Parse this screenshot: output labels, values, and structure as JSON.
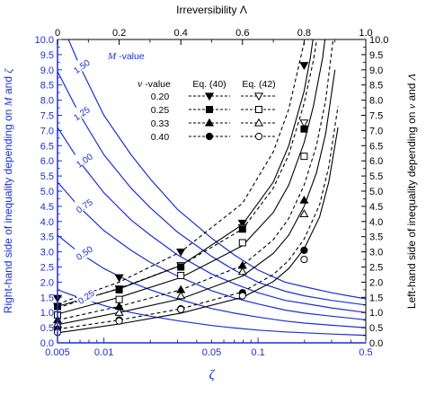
{
  "colors": {
    "blue": "#1a2fd4",
    "black": "#000000"
  },
  "chart_data": {
    "type": "line",
    "x_axis": {
      "title": "ζ",
      "scale": "log",
      "range": [
        0.005,
        0.5
      ],
      "ticks": [
        {
          "value": 0.005,
          "label": "0.005"
        },
        {
          "value": 0.01,
          "label": "0.01"
        },
        {
          "value": 0.05,
          "label": "0.05"
        },
        {
          "value": 0.1,
          "label": "0.1"
        },
        {
          "value": 0.5,
          "label": "0.5"
        }
      ]
    },
    "top_axis": {
      "title": "Irreversibility   Λ",
      "range": [
        0,
        1
      ],
      "ticks": [
        "0",
        "0.2",
        "0.4",
        "0.6",
        "0.8",
        "1.0"
      ]
    },
    "left_axis": {
      "title_parts": [
        "Right-hand side of inequality depending on ",
        "M",
        " and ",
        "ζ"
      ],
      "range": [
        0,
        10
      ],
      "ticks": [
        "0.0",
        "0.5",
        "1.0",
        "1.5",
        "2.0",
        "2.5",
        "3.0",
        "3.5",
        "4.0",
        "4.5",
        "5.0",
        "5.5",
        "6.0",
        "6.5",
        "7.0",
        "7.5",
        "8.0",
        "8.5",
        "9.0",
        "9.5",
        "10.0"
      ]
    },
    "right_axis": {
      "title_parts": [
        "Left-hand side of inequality depending on ",
        "ν",
        " and ",
        "Λ"
      ],
      "range": [
        0,
        10
      ],
      "ticks": [
        "0.0",
        "0.5",
        "1.0",
        "1.5",
        "2.0",
        "2.5",
        "3.0",
        "3.5",
        "4.0",
        "4.5",
        "5.0",
        "5.5",
        "6.0",
        "6.5",
        "7.0",
        "7.5",
        "8.0",
        "8.5",
        "9.0",
        "9.5",
        "10.0"
      ]
    },
    "m_series_title": [
      "M",
      " -value"
    ],
    "m_series": [
      {
        "name": "1.50",
        "x": [
          0.005,
          0.007,
          0.01,
          0.015,
          0.02,
          0.03,
          0.05,
          0.07,
          0.1,
          0.15,
          0.2,
          0.3,
          0.5
        ],
        "y": [
          10.85,
          9.1,
          7.5,
          6.2,
          5.4,
          4.4,
          3.45,
          2.9,
          2.4,
          2.0,
          1.85,
          1.65,
          1.45
        ]
      },
      {
        "name": "1.25",
        "x": [
          0.005,
          0.007,
          0.01,
          0.015,
          0.02,
          0.03,
          0.05,
          0.07,
          0.1,
          0.15,
          0.2,
          0.3,
          0.5
        ],
        "y": [
          8.95,
          7.5,
          6.2,
          5.1,
          4.45,
          3.65,
          2.85,
          2.4,
          2.0,
          1.7,
          1.55,
          1.4,
          1.25
        ]
      },
      {
        "name": "1.00",
        "x": [
          0.005,
          0.007,
          0.01,
          0.015,
          0.02,
          0.03,
          0.05,
          0.07,
          0.1,
          0.15,
          0.2,
          0.3,
          0.5
        ],
        "y": [
          7.1,
          5.95,
          4.95,
          4.05,
          3.55,
          2.9,
          2.27,
          1.95,
          1.65,
          1.4,
          1.3,
          1.15,
          1.0
        ]
      },
      {
        "name": "0.75",
        "x": [
          0.005,
          0.007,
          0.01,
          0.015,
          0.02,
          0.03,
          0.05,
          0.07,
          0.1,
          0.15,
          0.2,
          0.3,
          0.5
        ],
        "y": [
          5.3,
          4.45,
          3.7,
          3.05,
          2.65,
          2.2,
          1.72,
          1.48,
          1.28,
          1.08,
          0.98,
          0.88,
          0.76
        ]
      },
      {
        "name": "0.50",
        "x": [
          0.005,
          0.007,
          0.01,
          0.015,
          0.02,
          0.03,
          0.05,
          0.07,
          0.1,
          0.15,
          0.2,
          0.3,
          0.5
        ],
        "y": [
          3.55,
          2.95,
          2.45,
          2.0,
          1.75,
          1.45,
          1.13,
          0.98,
          0.85,
          0.72,
          0.65,
          0.58,
          0.5
        ]
      },
      {
        "name": "0.25",
        "x": [
          0.005,
          0.007,
          0.01,
          0.015,
          0.02,
          0.03,
          0.05,
          0.07,
          0.1,
          0.15,
          0.2,
          0.3,
          0.5
        ],
        "y": [
          1.75,
          1.48,
          1.23,
          1.0,
          0.88,
          0.73,
          0.57,
          0.49,
          0.42,
          0.36,
          0.33,
          0.29,
          0.25
        ]
      }
    ],
    "nu_title": [
      "ν",
      " -value"
    ],
    "eq40_label": "Eq. (40)",
    "eq42_label": "Eq. (42)",
    "nu_series": [
      {
        "nu": "0.20",
        "marker": "triangle-down",
        "eq40": {
          "x": [
            0,
            0.2,
            0.4,
            0.6,
            0.7,
            0.75,
            0.8,
            0.82,
            0.84,
            0.86
          ],
          "y": [
            1.28,
            2.0,
            3.0,
            4.6,
            6.3,
            7.7,
            9.9,
            11.2,
            12.8,
            15.0
          ]
        },
        "eq42": {
          "x": [
            0,
            0.2,
            0.4,
            0.6,
            0.7,
            0.75,
            0.8,
            0.82,
            0.84,
            0.86
          ],
          "y": [
            1.2,
            1.78,
            2.55,
            3.9,
            5.3,
            6.5,
            8.3,
            9.4,
            10.8,
            12.8
          ]
        },
        "marker_pts": {
          "eq40": [
            [
              0,
              1.47
            ],
            [
              0.2,
              2.15
            ],
            [
              0.4,
              3.0
            ],
            [
              0.6,
              3.95
            ],
            [
              0.8,
              9.15
            ]
          ],
          "eq42": [
            [
              0,
              1.2
            ],
            [
              0.2,
              1.78
            ],
            [
              0.4,
              2.55
            ],
            [
              0.6,
              3.8
            ],
            [
              0.8,
              7.25
            ]
          ]
        }
      },
      {
        "nu": "0.25",
        "marker": "square",
        "eq40": {
          "x": [
            0,
            0.2,
            0.4,
            0.6,
            0.7,
            0.75,
            0.8,
            0.83,
            0.86,
            0.88
          ],
          "y": [
            1.15,
            1.8,
            2.55,
            3.75,
            5.1,
            6.2,
            7.9,
            9.3,
            11.2,
            13.0
          ]
        },
        "eq42": {
          "x": [
            0,
            0.2,
            0.4,
            0.6,
            0.7,
            0.75,
            0.8,
            0.83,
            0.86,
            0.88
          ],
          "y": [
            0.95,
            1.5,
            2.15,
            3.2,
            4.3,
            5.2,
            6.6,
            7.8,
            9.4,
            11.0
          ]
        },
        "marker_pts": {
          "eq40": [
            [
              0,
              1.2
            ],
            [
              0.2,
              1.75
            ],
            [
              0.4,
              2.5
            ],
            [
              0.6,
              3.75
            ],
            [
              0.8,
              7.05
            ]
          ],
          "eq42": [
            [
              0,
              0.92
            ],
            [
              0.2,
              1.43
            ],
            [
              0.4,
              2.22
            ],
            [
              0.6,
              3.3
            ],
            [
              0.8,
              6.15
            ]
          ]
        }
      },
      {
        "nu": "0.33",
        "marker": "triangle-up",
        "eq40": {
          "x": [
            0,
            0.2,
            0.4,
            0.6,
            0.7,
            0.75,
            0.8,
            0.84,
            0.87,
            0.9
          ],
          "y": [
            0.75,
            1.2,
            1.75,
            2.55,
            3.4,
            4.1,
            5.2,
            6.5,
            8.0,
            10.5
          ]
        },
        "eq42": {
          "x": [
            0,
            0.2,
            0.4,
            0.6,
            0.7,
            0.75,
            0.8,
            0.84,
            0.87,
            0.9
          ],
          "y": [
            0.6,
            1.0,
            1.45,
            2.2,
            2.95,
            3.55,
            4.5,
            5.6,
            6.9,
            9.0
          ]
        },
        "marker_pts": {
          "eq40": [
            [
              0,
              0.75
            ],
            [
              0.2,
              1.2
            ],
            [
              0.4,
              1.75
            ],
            [
              0.6,
              2.55
            ],
            [
              0.8,
              4.7
            ]
          ],
          "eq42": [
            [
              0,
              0.62
            ],
            [
              0.2,
              1.0
            ],
            [
              0.4,
              1.55
            ],
            [
              0.6,
              2.35
            ],
            [
              0.8,
              4.25
            ]
          ]
        }
      },
      {
        "nu": "0.40",
        "marker": "circle",
        "eq40": {
          "x": [
            0,
            0.2,
            0.4,
            0.6,
            0.7,
            0.75,
            0.8,
            0.85,
            0.88,
            0.91
          ],
          "y": [
            0.45,
            0.75,
            1.12,
            1.68,
            2.25,
            2.72,
            3.42,
            4.55,
            5.8,
            7.8
          ]
        },
        "eq42": {
          "x": [
            0,
            0.2,
            0.4,
            0.6,
            0.7,
            0.75,
            0.8,
            0.85,
            0.88,
            0.91
          ],
          "y": [
            0.33,
            0.62,
            0.98,
            1.5,
            2.02,
            2.45,
            3.1,
            4.15,
            5.3,
            7.1
          ]
        },
        "marker_pts": {
          "eq40": [
            [
              0,
              0.45
            ],
            [
              0.2,
              0.75
            ],
            [
              0.4,
              1.12
            ],
            [
              0.6,
              1.65
            ],
            [
              0.8,
              3.05
            ]
          ],
          "eq42": [
            [
              0,
              0.35
            ],
            [
              0.2,
              0.72
            ],
            [
              0.4,
              1.1
            ],
            [
              0.6,
              1.55
            ],
            [
              0.8,
              2.75
            ]
          ]
        }
      }
    ]
  }
}
